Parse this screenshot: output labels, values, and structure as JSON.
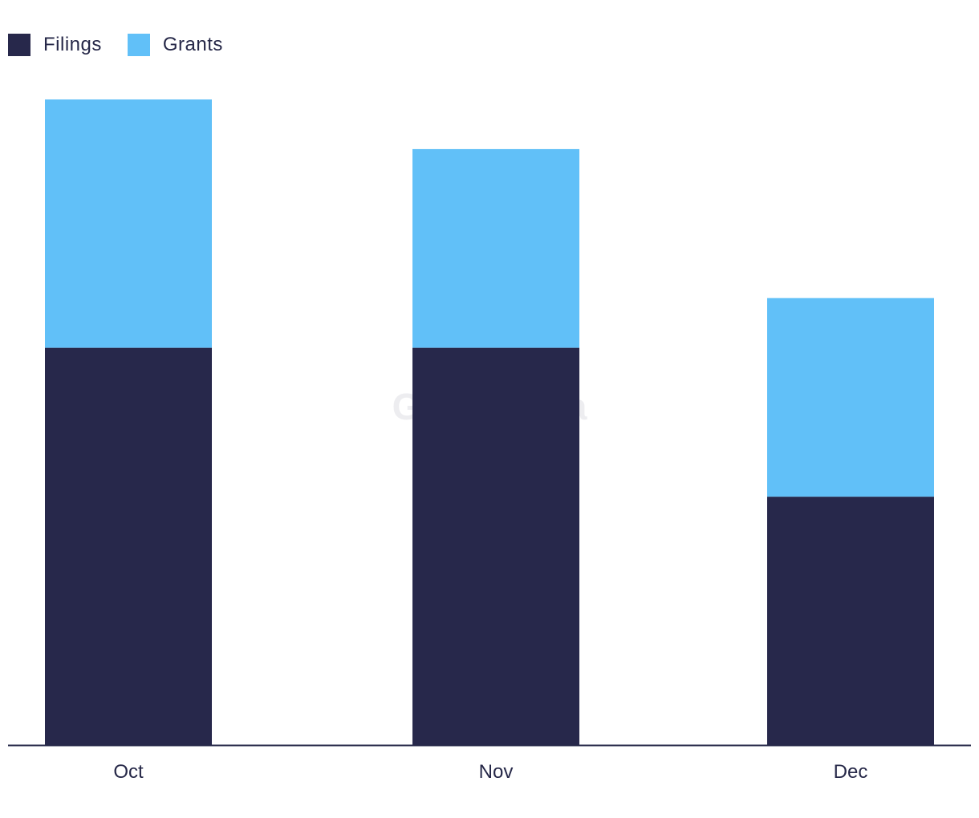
{
  "chart_data": {
    "type": "bar",
    "stacked": true,
    "categories": [
      "Oct",
      "Nov",
      "Dec"
    ],
    "series": [
      {
        "name": "Filings",
        "values": [
          16,
          16,
          10
        ]
      },
      {
        "name": "Grants",
        "values": [
          10,
          8,
          8
        ]
      }
    ],
    "ylim": [
      0,
      26
    ],
    "grid": false,
    "legend_position": "top-left",
    "colors": {
      "Filings": "#27284b",
      "Grants": "#61c0f8"
    }
  },
  "watermark": "GlobalData"
}
